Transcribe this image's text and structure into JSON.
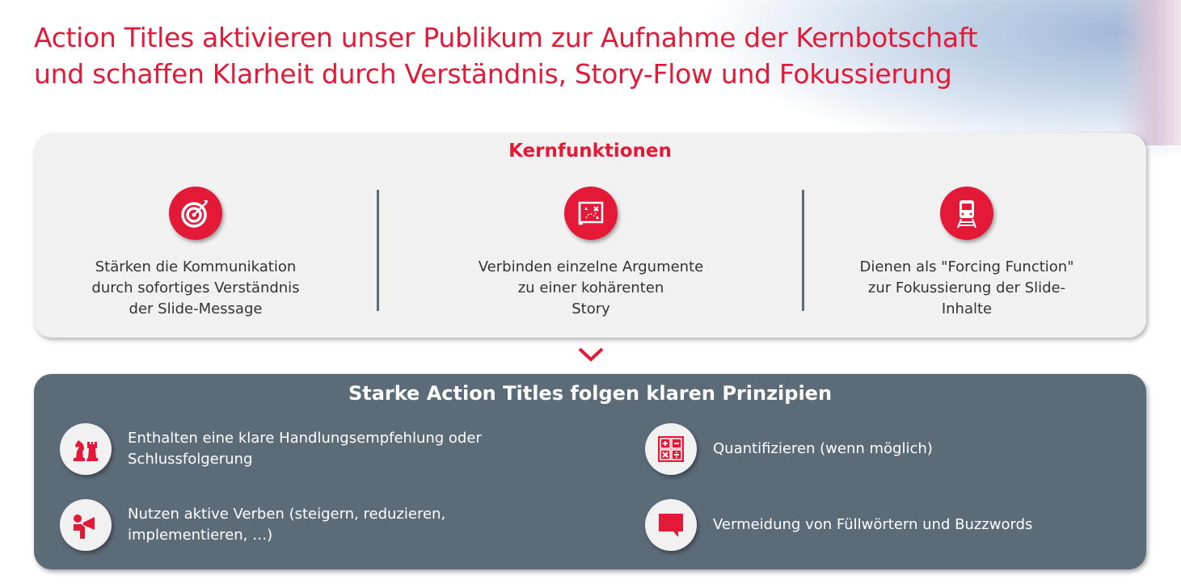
{
  "title": "Action Titles aktivieren unser Publikum zur Aufnahme der Kernbotschaft\nund schaffen Klarheit durch Verständnis, Story-Flow und Fokussierung",
  "colors": {
    "accent": "#e31937",
    "panel": "#5b6b78",
    "card": "#f1f1f1"
  },
  "kernfunktionen": {
    "heading": "Kernfunktionen",
    "items": [
      {
        "icon": "target-icon",
        "text": "Stärken die Kommunikation\ndurch sofortiges Verständnis\nder Slide-Message"
      },
      {
        "icon": "treasure-map-icon",
        "text": "Verbinden einzelne Argumente\nzu einer kohärenten\nStory"
      },
      {
        "icon": "train-icon",
        "text": "Dienen als \"Forcing Function\"\nzur Fokussierung der Slide-\nInhalte"
      }
    ]
  },
  "prinzipien": {
    "heading": "Starke Action Titles folgen klaren Prinzipien",
    "items": [
      {
        "icon": "chess-pieces-icon",
        "text": "Enthalten eine klare Handlungsempfehlung oder\nSchlussfolgerung"
      },
      {
        "icon": "megaphone-person-icon",
        "text": "Nutzen aktive Verben (steigern, reduzieren,\nimplementieren, …)"
      },
      {
        "icon": "calculator-icon",
        "text": "Quantifizieren (wenn möglich)"
      },
      {
        "icon": "speech-bubble-icon",
        "text": "Vermeidung von Füllwörtern und Buzzwords"
      }
    ]
  }
}
